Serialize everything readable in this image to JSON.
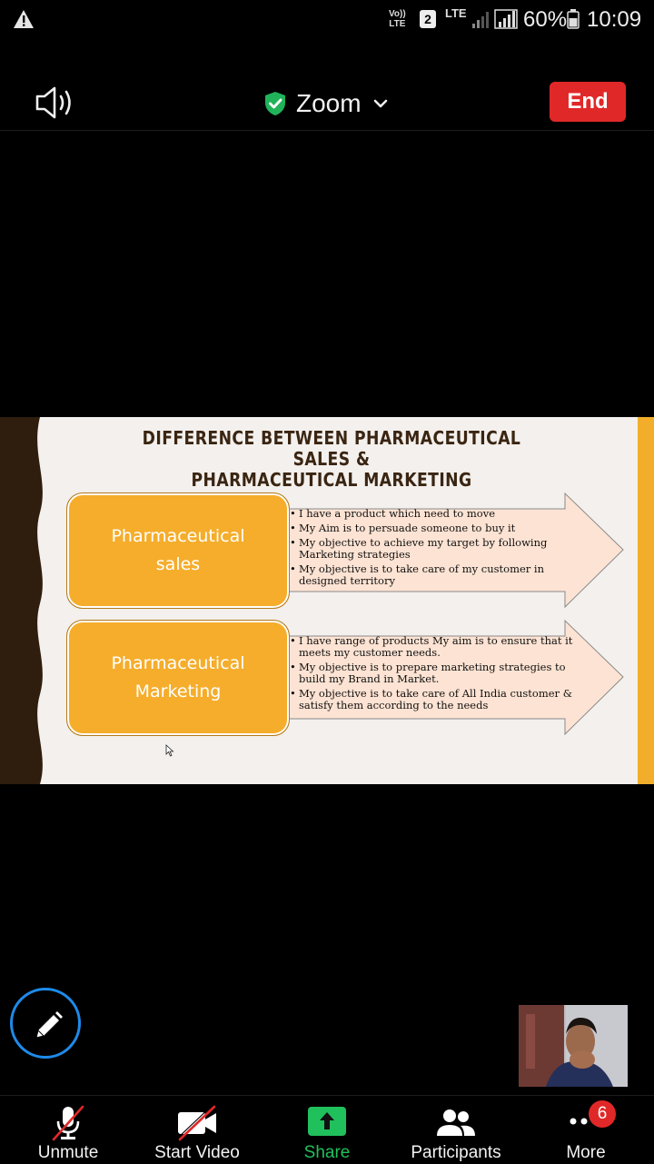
{
  "status_bar": {
    "volte": [
      "Vo))",
      "LTE"
    ],
    "sim": "2",
    "network": "LTE",
    "battery": "60%",
    "time": "10:09"
  },
  "header": {
    "title": "Zoom",
    "end_label": "End"
  },
  "slide": {
    "title_line1": "DIFFERENCE BETWEEN PHARMACEUTICAL SALES &",
    "title_line2": "PHARMACEUTICAL MARKETING",
    "rows": [
      {
        "box_line1": "Pharmaceutical",
        "box_line2": "sales",
        "bullets": [
          "I have a product which need to move",
          "My Aim is to persuade someone to buy it",
          "My objective to achieve my target by following Marketing strategies",
          "My objective is to take care of my customer in designed territory"
        ]
      },
      {
        "box_line1": "Pharmaceutical",
        "box_line2": "Marketing",
        "bullets": [
          "I have range of products My aim is to ensure that it meets my customer needs.",
          "My objective is to prepare marketing strategies to build my Brand in Market.",
          "My objective is to take care of All India customer & satisfy them according to the needs"
        ]
      }
    ]
  },
  "toolbar": {
    "unmute": "Unmute",
    "start_video": "Start Video",
    "share": "Share",
    "participants": "Participants",
    "more": "More",
    "more_badge": "6"
  },
  "colors": {
    "end_red": "#e02828",
    "share_green": "#20c05c",
    "slide_orange": "#f5ad2b",
    "slide_arrow_fill": "#fde3d3",
    "annotate_blue": "#1e8bea"
  }
}
